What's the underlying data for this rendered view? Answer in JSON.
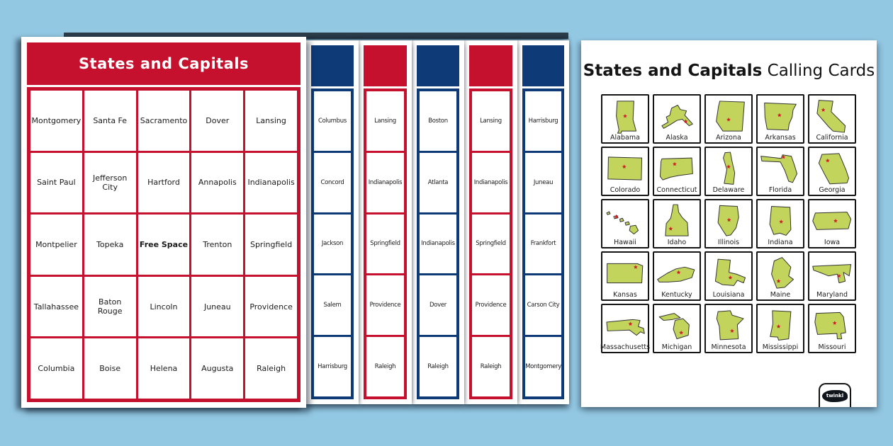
{
  "colors": {
    "background": "#93c8e3",
    "red": "#c5102e",
    "navy": "#0e3a77",
    "state_green": "#c3d45c",
    "state_outline": "#333333",
    "star_red": "#cc1f27",
    "text_dark": "#1b1b1b"
  },
  "bingo": {
    "title": "States and Capitals",
    "front_card": {
      "color": "#c5102e",
      "free_space_label": "Free Space",
      "rows": [
        [
          "Montgomery",
          "Santa Fe",
          "Sacramento",
          "Dover",
          "Lansing"
        ],
        [
          "Saint Paul",
          "Jefferson City",
          "Hartford",
          "Annapolis",
          "Indianapolis"
        ],
        [
          "Montpelier",
          "Topeka",
          "Free Space",
          "Trenton",
          "Springfield"
        ],
        [
          "Tallahassee",
          "Baton Rouge",
          "Lincoln",
          "Juneau",
          "Providence"
        ],
        [
          "Columbia",
          "Boise",
          "Helena",
          "Augusta",
          "Raleigh"
        ]
      ]
    },
    "stacked_cards": [
      {
        "color": "#0e3a77",
        "visible_cells": [
          "Columbus",
          "Concord",
          "Jackson",
          "Salem",
          "Harrisburg"
        ]
      },
      {
        "color": "#c5102e",
        "visible_cells": [
          "Lansing",
          "Indianapolis",
          "Springfield",
          "Providence",
          "Raleigh"
        ]
      },
      {
        "color": "#0e3a77",
        "visible_cells": [
          "Boston",
          "Atlanta",
          "Indianapolis",
          "Dover",
          "Raleigh"
        ]
      },
      {
        "color": "#c5102e",
        "visible_cells": [
          "Lansing",
          "Indianapolis",
          "Springfield",
          "Providence",
          "Raleigh"
        ]
      },
      {
        "color": "#0e3a77",
        "visible_cells": [
          "Harrisburg",
          "Juneau",
          "Frankfort",
          "Carson City",
          "Montgomery"
        ]
      }
    ]
  },
  "calling_page": {
    "title_bold": "States and Capitals",
    "title_regular": " Calling Cards",
    "cards": [
      "Alabama",
      "Alaska",
      "Arizona",
      "Arkansas",
      "California",
      "Colorado",
      "Connecticut",
      "Delaware",
      "Florida",
      "Georgia",
      "Hawaii",
      "Idaho",
      "Illinois",
      "Indiana",
      "Iowa",
      "Kansas",
      "Kentucky",
      "Louisiana",
      "Maine",
      "Maryland",
      "Massachusetts",
      "Michigan",
      "Minnesota",
      "Mississippi",
      "Missouri"
    ],
    "logo_text": "twinkl"
  }
}
